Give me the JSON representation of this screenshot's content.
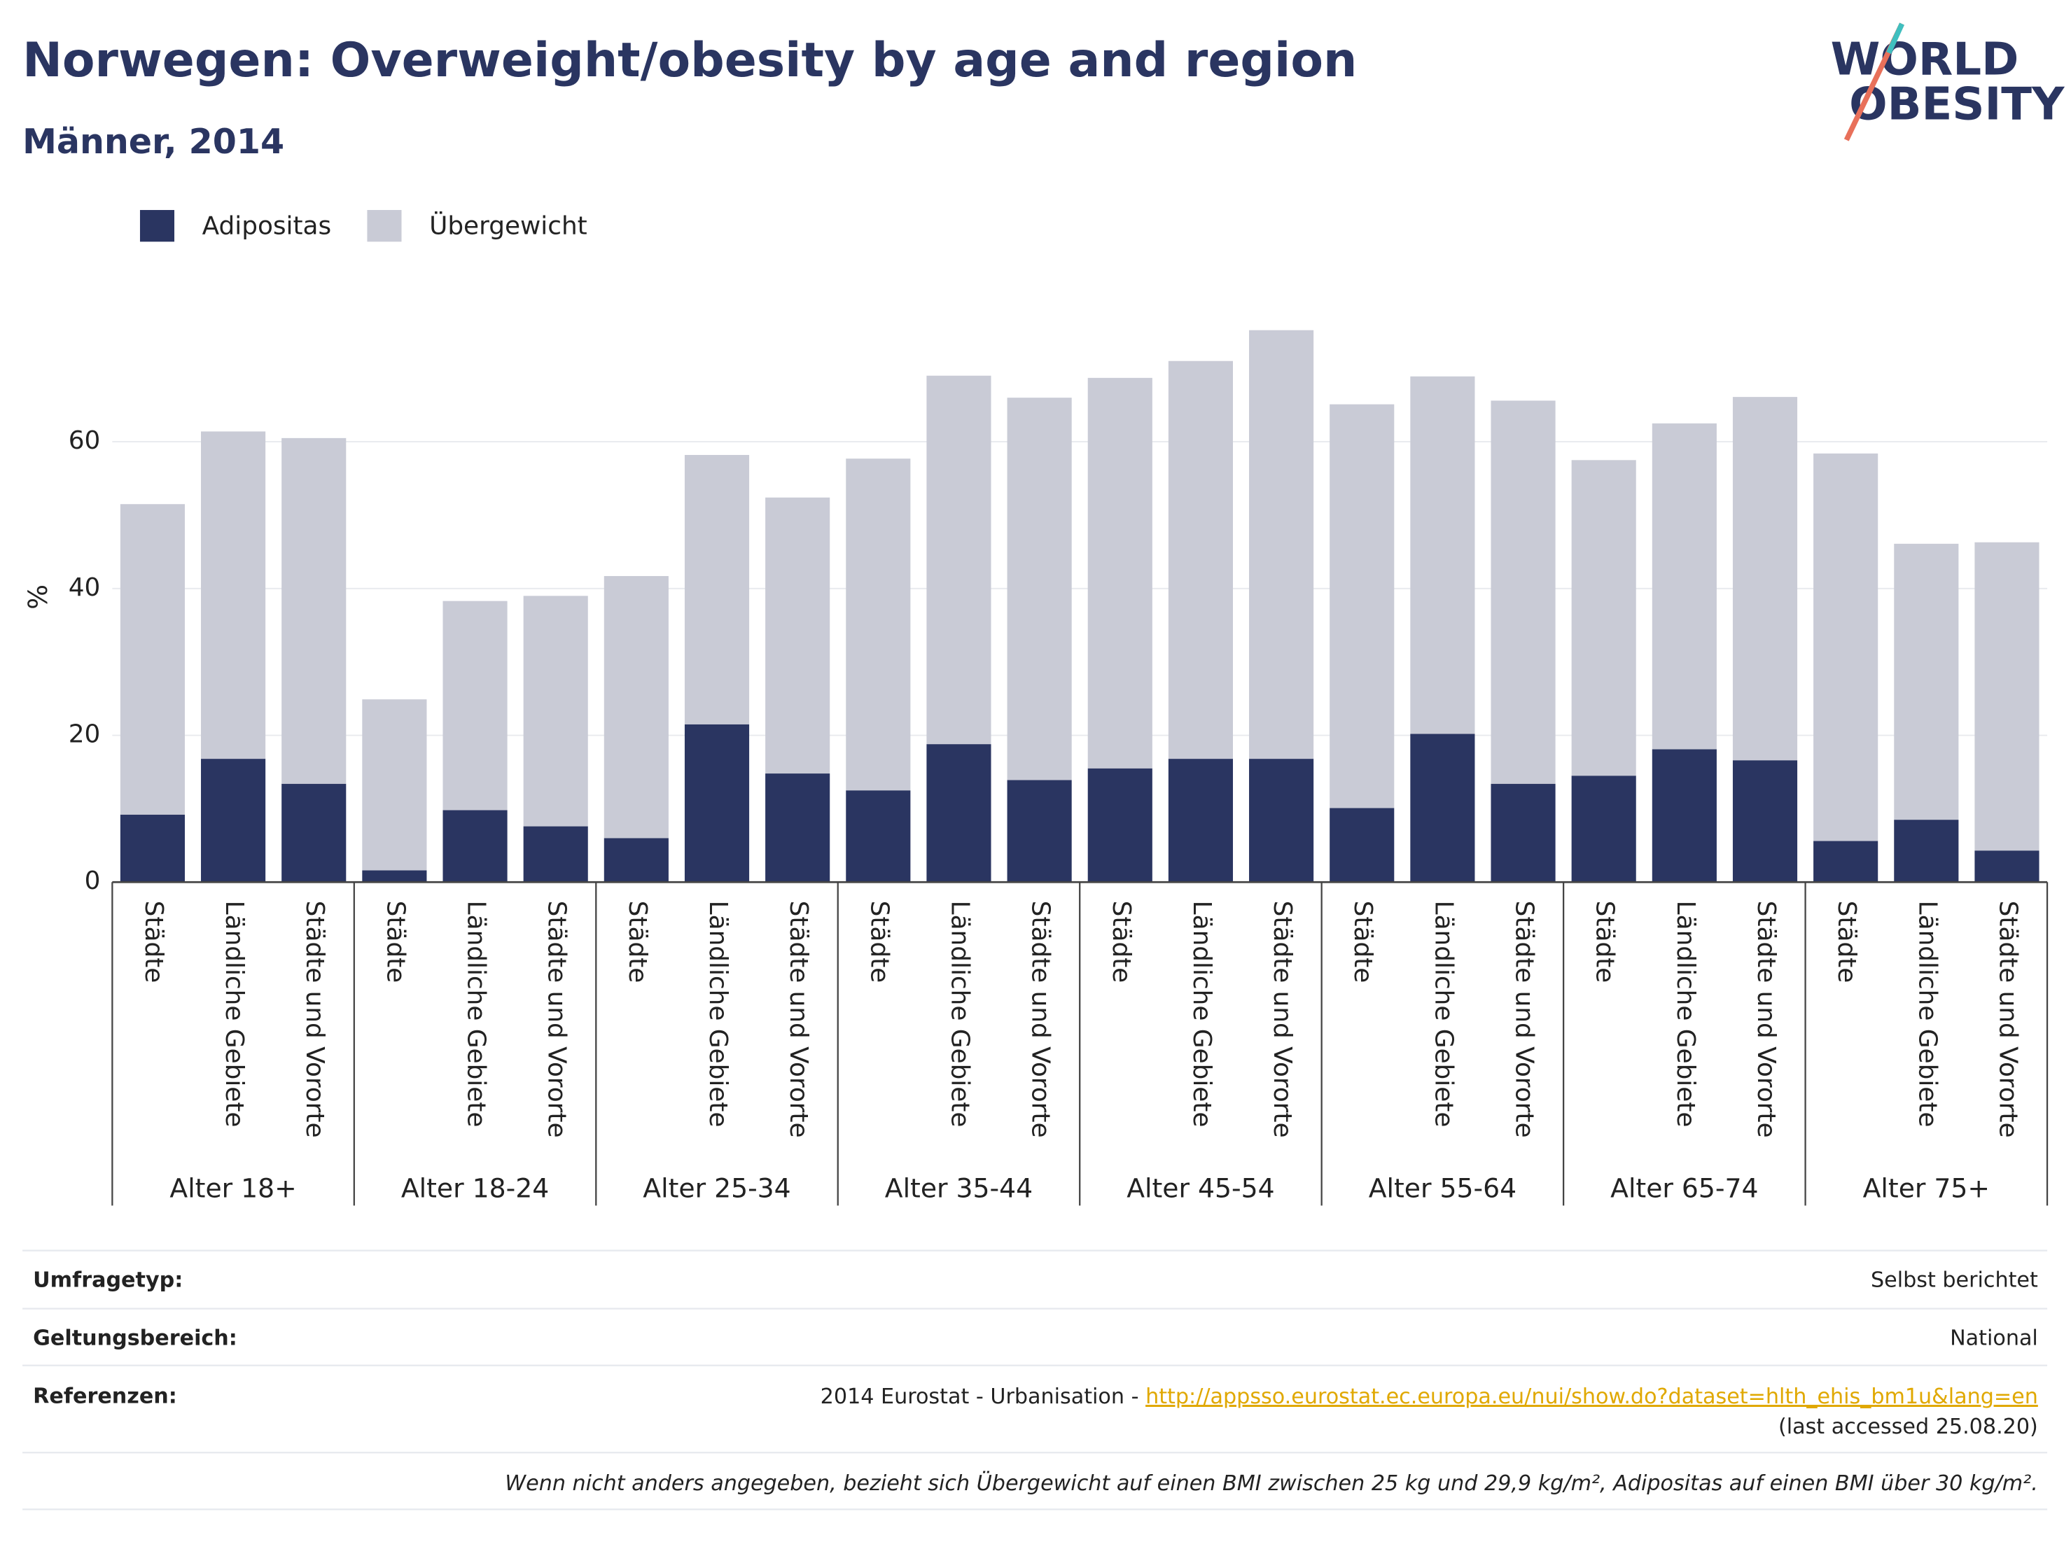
{
  "chart_data": {
    "type": "stacked_bar",
    "title": "Norwegen: Overweight/obesity by age and region",
    "subtitle": "Männer, 2014",
    "y_label": "%",
    "categories": [
      "Städte",
      "Ländliche Gebiete",
      "Städte und Vororte",
      "Städte",
      "Ländliche Gebiete",
      "Städte und Vororte",
      "Städte",
      "Ländliche Gebiete",
      "Städte und Vororte",
      "Städte",
      "Ländliche Gebiete",
      "Städte und Vororte",
      "Städte",
      "Ländliche Gebiete",
      "Städte und Vororte",
      "Städte",
      "Ländliche Gebiete",
      "Städte und Vororte",
      "Städte",
      "Ländliche Gebiete",
      "Städte und Vororte",
      "Städte",
      "Ländliche Gebiete",
      "Städte und Vororte"
    ],
    "groups": [
      "Alter 18+",
      "Alter 18-24",
      "Alter 25-34",
      "Alter 35-44",
      "Alter 45-54",
      "Alter 55-64",
      "Alter 65-74",
      "Alter 75+"
    ],
    "series": [
      {
        "name": "Adipositas",
        "color": "#2a3561",
        "values": [
          9.2,
          16.8,
          13.4,
          1.6,
          9.8,
          7.6,
          6.0,
          21.5,
          14.8,
          12.5,
          18.8,
          13.9,
          15.5,
          16.8,
          16.8,
          10.1,
          20.2,
          13.4,
          14.5,
          18.1,
          16.6,
          5.6,
          8.5,
          4.3
        ]
      },
      {
        "name": "Übergewicht",
        "color": "#c9cbd6",
        "values": [
          42.3,
          44.6,
          47.1,
          23.3,
          28.5,
          31.4,
          35.7,
          36.7,
          37.6,
          45.2,
          50.2,
          52.1,
          53.2,
          54.2,
          58.4,
          55.0,
          48.7,
          52.2,
          43.0,
          44.4,
          49.5,
          52.8,
          37.6,
          42.0
        ]
      }
    ],
    "ylim": [
      0,
      77
    ],
    "yticks": [
      0,
      20,
      40,
      60
    ],
    "grid": true,
    "legend": "top-left"
  },
  "logo": {
    "line1": "WORLD",
    "line2": "OBESITY"
  },
  "footer": {
    "rows": [
      {
        "label": "Umfragetyp:",
        "value": "Selbst berichtet"
      },
      {
        "label": "Geltungsbereich:",
        "value": "National"
      }
    ],
    "references": {
      "label": "Referenzen:",
      "prefix": "2014 Eurostat - Urbanisation - ",
      "link": "http://appsso.eurostat.ec.europa.eu/nui/show.do?dataset=hlth_ehis_bm1u&lang=en",
      "suffix": "(last accessed 25.08.20)"
    },
    "note": "Wenn nicht anders angegeben, bezieht sich Übergewicht auf einen BMI zwischen 25 kg und 29,9 kg/m², Adipositas auf einen BMI über 30 kg/m²."
  }
}
